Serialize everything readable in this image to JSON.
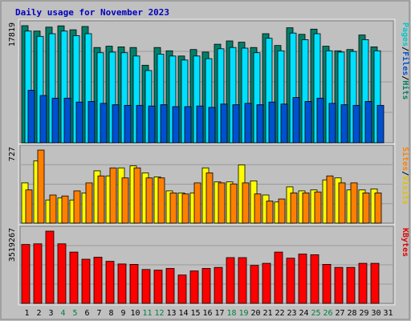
{
  "chart_data": {
    "type": "bar",
    "title": "Daily usage for November 2023",
    "categories": [
      "1",
      "2",
      "3",
      "4",
      "5",
      "6",
      "7",
      "8",
      "9",
      "10",
      "11",
      "12",
      "13",
      "14",
      "15",
      "16",
      "17",
      "18",
      "19",
      "20",
      "21",
      "22",
      "23",
      "24",
      "25",
      "26",
      "27",
      "28",
      "29",
      "30",
      "31"
    ],
    "weekend_days": [
      "4",
      "5",
      "11",
      "12",
      "18",
      "19",
      "25",
      "26"
    ],
    "panels": [
      {
        "id": "top",
        "max_label": "17819",
        "ymax": 17819,
        "side_labels": [
          "Pages",
          "/",
          "Files",
          "/",
          "Hits"
        ],
        "side_colors": [
          "#00c8c8",
          "#000000",
          "#0050d0",
          "#000000",
          "#008060"
        ],
        "series": [
          {
            "name": "Hits",
            "color": "#00806a",
            "values": [
              17819,
              17000,
              17600,
              17800,
              17200,
              17700,
              14500,
              14700,
              14600,
              14500,
              11800,
              14500,
              14000,
              13200,
              14200,
              13800,
              15000,
              15500,
              15300,
              14500,
              16600,
              14800,
              17500,
              16500,
              17300,
              14700,
              14000,
              14200,
              16400,
              14600
            ]
          },
          {
            "name": "Files",
            "color": "#00e0ff",
            "values": [
              17000,
              16200,
              16600,
              17000,
              16300,
              16600,
              13700,
              13800,
              13700,
              13200,
              11000,
              13500,
              13200,
              12600,
              13200,
              12800,
              14300,
              14500,
              14400,
              13700,
              15900,
              14000,
              16700,
              15700,
              16600,
              14000,
              13800,
              13900,
              15700,
              14000
            ]
          },
          {
            "name": "Pages",
            "color": "#0050d0",
            "values": [
              8000,
              7200,
              6800,
              6800,
              6200,
              6300,
              6000,
              5800,
              5700,
              5700,
              5600,
              5800,
              5500,
              5500,
              5600,
              5400,
              5900,
              5800,
              6000,
              5800,
              6200,
              5900,
              6900,
              6300,
              6800,
              6000,
              5800,
              5700,
              6300,
              5700
            ]
          }
        ]
      },
      {
        "id": "middle",
        "max_label": "727",
        "ymax": 727,
        "side_labels": [
          "Sites",
          "/",
          "Visits"
        ],
        "side_colors": [
          "#ff8000",
          "#000000",
          "#e0c000"
        ],
        "series": [
          {
            "name": "Visits",
            "color": "#ffff00",
            "values": [
              400,
              620,
              230,
              250,
              230,
              300,
              520,
              470,
              550,
              570,
              500,
              460,
              320,
              300,
              300,
              550,
              410,
              410,
              580,
              420,
              280,
              210,
              360,
              320,
              330,
              430,
              450,
              330,
              330,
              340
            ]
          },
          {
            "name": "Sites",
            "color": "#ff8000",
            "values": [
              330,
              727,
              280,
              270,
              320,
              400,
              470,
              550,
              450,
              550,
              450,
              450,
              300,
              290,
              400,
              500,
              400,
              390,
              400,
              290,
              220,
              240,
              300,
              300,
              310,
              470,
              400,
              400,
              300,
              300
            ]
          }
        ]
      },
      {
        "id": "bottom",
        "max_label": "3519267",
        "ymax": 3519267,
        "side_labels": [
          "KBytes"
        ],
        "side_colors": [
          "#e00000"
        ],
        "series": [
          {
            "name": "KBytes",
            "color": "#ff0000",
            "values": [
              2870000,
              2900000,
              3519267,
              2900000,
              2500000,
              2150000,
              2250000,
              2050000,
              1920000,
              1900000,
              1650000,
              1620000,
              1700000,
              1380000,
              1580000,
              1700000,
              1750000,
              2230000,
              2230000,
              1850000,
              1950000,
              2500000,
              2200000,
              2400000,
              2370000,
              1900000,
              1750000,
              1750000,
              1950000,
              1950000
            ]
          }
        ]
      }
    ],
    "legend": "right-vertical",
    "grid": true
  },
  "colors": {
    "background": "#c0c0c0",
    "title": "#0000c0",
    "axis_label": "#000000",
    "weekday_label": "#000000",
    "weekend_label": "#008040",
    "bevel_light": "#e8e8e8",
    "bevel_dark": "#808080",
    "grid": "#9a9a9a"
  }
}
